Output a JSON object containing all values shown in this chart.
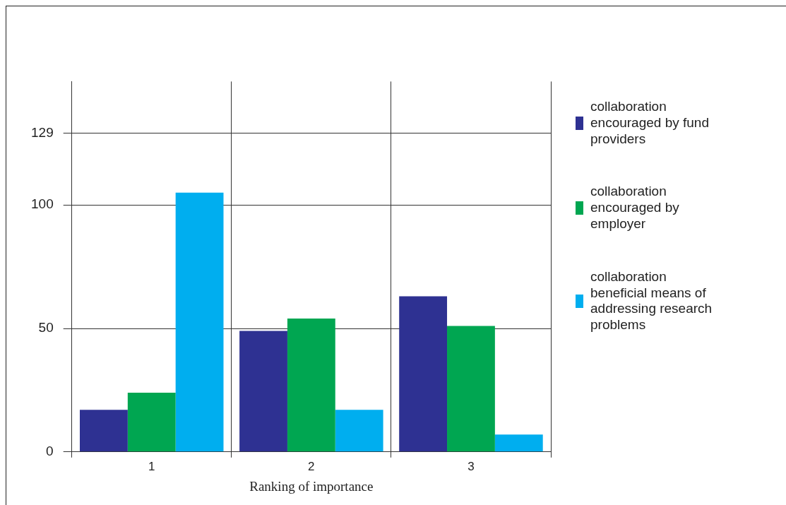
{
  "chart_data": {
    "type": "bar",
    "xlabel": "Ranking of importance",
    "categories": [
      "1",
      "2",
      "3"
    ],
    "series": [
      {
        "name": "collaboration encouraged by fund providers",
        "color": "#2e3192",
        "values": [
          17,
          49,
          63
        ]
      },
      {
        "name": "collaboration encouraged by employer",
        "color": "#00a651",
        "values": [
          24,
          54,
          51
        ]
      },
      {
        "name": "collaboration beneficial means of addressing research problems",
        "color": "#00aeef",
        "values": [
          105,
          17,
          7
        ]
      }
    ],
    "ylim": [
      0,
      150
    ],
    "yticks": [
      0,
      50,
      100,
      129
    ],
    "grid": true,
    "legend": "right"
  }
}
